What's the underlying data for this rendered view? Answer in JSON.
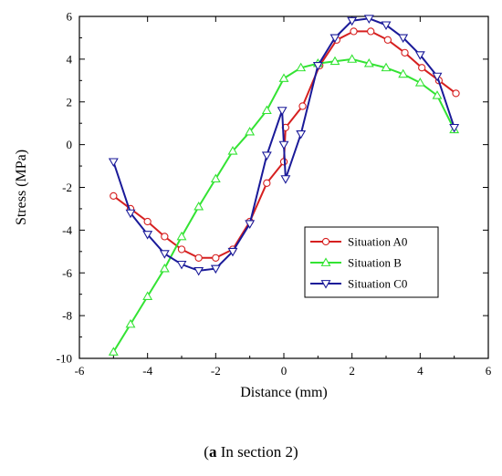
{
  "caption": {
    "letter": "a",
    "text": " In section 2"
  },
  "chart_data": {
    "type": "line",
    "xlabel": "Distance (mm)",
    "ylabel": "Stress (MPa)",
    "xlim": [
      -6,
      6
    ],
    "ylim": [
      -10,
      6
    ],
    "xticks": [
      -6,
      -4,
      -2,
      0,
      2,
      4,
      6
    ],
    "yticks": [
      -10,
      -8,
      -6,
      -4,
      -2,
      0,
      2,
      4,
      6
    ],
    "grid": false,
    "legend_position": "lower-right",
    "series": [
      {
        "name": "Situation A0",
        "color": "#d62020",
        "marker": "circle",
        "x": [
          -5,
          -4.5,
          -4,
          -3.5,
          -3,
          -2.5,
          -2,
          -1.5,
          -1,
          -0.5,
          0,
          0.05,
          0.55,
          1.05,
          1.55,
          2.05,
          2.55,
          3.05,
          3.55,
          4.05,
          4.55,
          5.05
        ],
        "y": [
          -2.4,
          -3.0,
          -3.6,
          -4.3,
          -4.9,
          -5.3,
          -5.3,
          -4.9,
          -3.6,
          -1.8,
          -0.8,
          0.8,
          1.8,
          3.7,
          4.9,
          5.3,
          5.3,
          4.9,
          4.3,
          3.6,
          3.0,
          2.4
        ]
      },
      {
        "name": "Situation B",
        "color": "#33e333",
        "marker": "triangle-up",
        "x": [
          -5,
          -4.5,
          -4,
          -3.5,
          -3,
          -2.5,
          -2,
          -1.5,
          -1,
          -0.5,
          0,
          0.5,
          1,
          1.5,
          2,
          2.5,
          3,
          3.5,
          4,
          4.5,
          5
        ],
        "y": [
          -9.7,
          -8.4,
          -7.1,
          -5.8,
          -4.3,
          -2.9,
          -1.6,
          -0.3,
          0.6,
          1.6,
          3.1,
          3.6,
          3.8,
          3.9,
          4.0,
          3.8,
          3.6,
          3.3,
          2.9,
          2.3,
          0.7
        ]
      },
      {
        "name": "Situation C0",
        "color": "#1a1a99",
        "marker": "triangle-down",
        "x": [
          -5,
          -4.5,
          -4,
          -3.5,
          -3,
          -2.5,
          -2,
          -1.5,
          -1,
          -0.5,
          -0.05,
          0,
          0.05,
          0.5,
          1,
          1.5,
          2,
          2.5,
          3,
          3.5,
          4,
          4.5,
          5
        ],
        "y": [
          -0.8,
          -3.2,
          -4.2,
          -5.1,
          -5.6,
          -5.9,
          -5.8,
          -5.0,
          -3.7,
          -0.5,
          1.6,
          0,
          -1.6,
          0.5,
          3.7,
          5.0,
          5.8,
          5.9,
          5.6,
          5.0,
          4.2,
          3.2,
          0.8
        ]
      }
    ]
  }
}
